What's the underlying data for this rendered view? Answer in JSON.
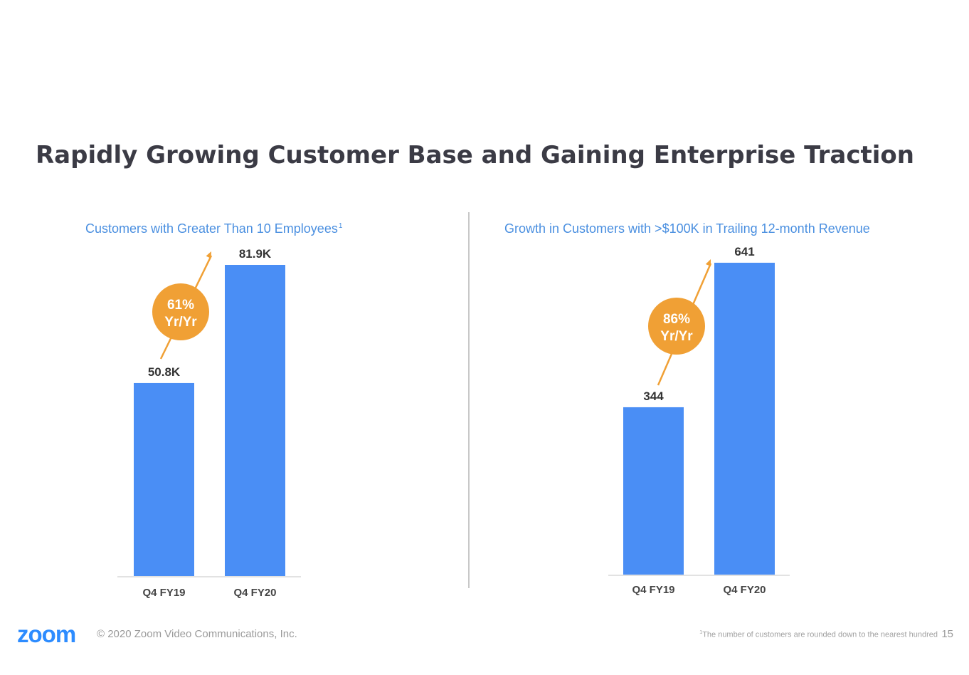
{
  "slide": {
    "title": "Rapidly Growing Customer Base and Gaining Enterprise Traction"
  },
  "chart_data": [
    {
      "type": "bar",
      "title": "Customers with Greater Than 10 Employees",
      "title_footnote_mark": "1",
      "categories": [
        "Q4 FY19",
        "Q4 FY20"
      ],
      "values": [
        50.8,
        81.9
      ],
      "value_labels": [
        "50.8K",
        "81.9K"
      ],
      "unit": "K",
      "ylim": [
        0,
        81.9
      ],
      "growth": {
        "line1": "61%",
        "line2": "Yr/Yr"
      },
      "bar_color": "#4a8ef5",
      "annotation_color": "#f0a035",
      "grid": false
    },
    {
      "type": "bar",
      "title": "Growth in Customers with >$100K in Trailing 12-month Revenue",
      "categories": [
        "Q4 FY19",
        "Q4 FY20"
      ],
      "values": [
        344,
        641
      ],
      "value_labels": [
        "344",
        "641"
      ],
      "ylim": [
        0,
        641
      ],
      "growth": {
        "line1": "86%",
        "line2": "Yr/Yr"
      },
      "bar_color": "#4a8ef5",
      "annotation_color": "#f0a035",
      "grid": false
    }
  ],
  "footer": {
    "logo": "zoom",
    "copyright": "© 2020 Zoom Video Communications, Inc.",
    "note_mark": "1",
    "note": "The number of customers are rounded down to the nearest hundred",
    "page_number": "15"
  }
}
